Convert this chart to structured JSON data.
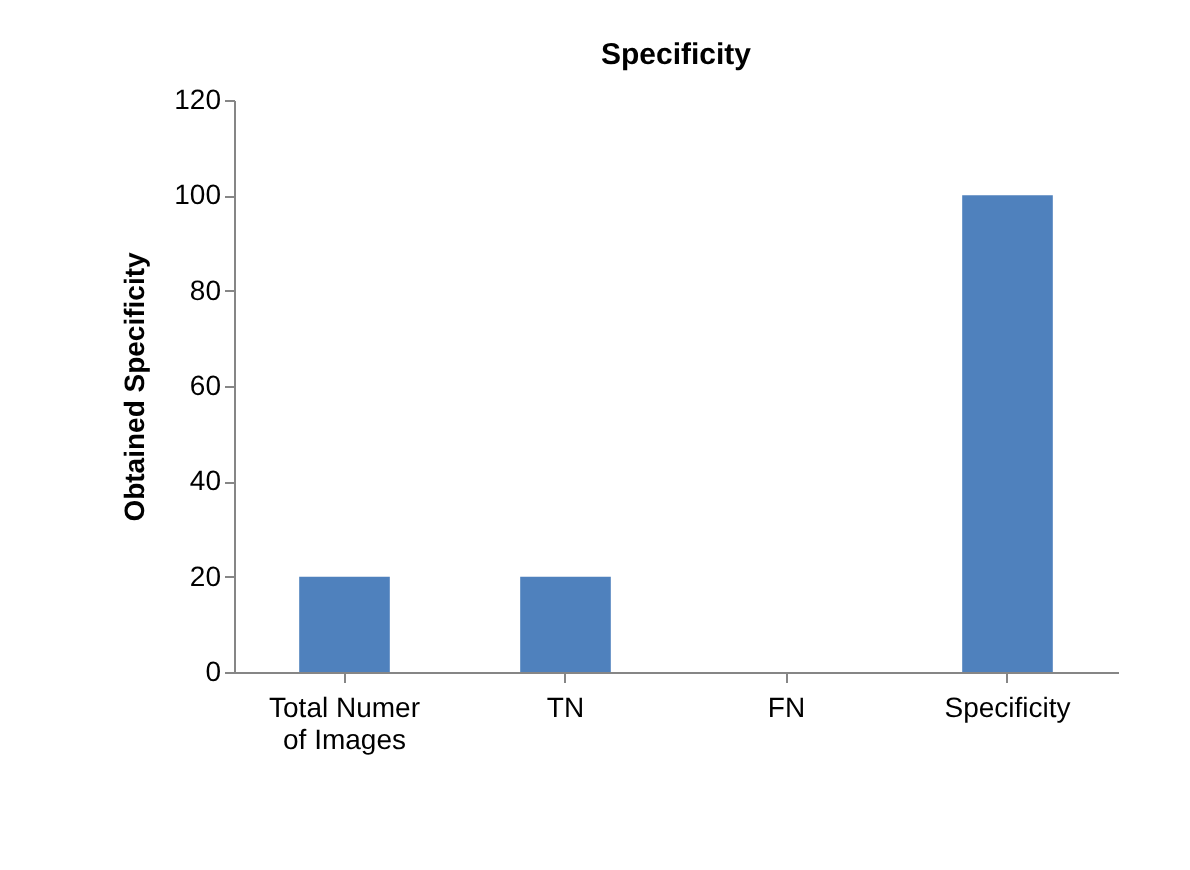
{
  "chart_data": {
    "type": "bar",
    "title": "Specificity",
    "ylabel": "Obtained Specificity",
    "categories": [
      "Total Numer of Images",
      "TN",
      "FN",
      "Specificity"
    ],
    "values": [
      20,
      20,
      0,
      100
    ],
    "color": "#4f81bd",
    "ylim": [
      0,
      120
    ],
    "yticks": [
      0,
      20,
      40,
      60,
      80,
      100,
      120
    ],
    "grid": false
  }
}
